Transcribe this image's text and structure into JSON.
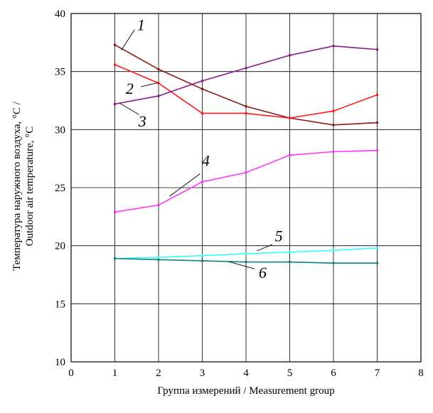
{
  "chart_data": {
    "type": "line",
    "title": "",
    "xlabel": "Группа измерений / Measurement group",
    "ylabel_line1": "Температура наружного воздуха, °С /",
    "ylabel_line2": "Outdoor air temperature, °С",
    "xlim": [
      0,
      8
    ],
    "ylim": [
      10,
      40
    ],
    "xticks": [
      "0",
      "1",
      "2",
      "3",
      "4",
      "5",
      "6",
      "7",
      "8"
    ],
    "yticks": [
      "10",
      "15",
      "20",
      "25",
      "30",
      "35",
      "40"
    ],
    "grid": true,
    "x": [
      1,
      2,
      3,
      4,
      5,
      6,
      7
    ],
    "series": [
      {
        "label": "1",
        "color": "#8b1a1a",
        "values": [
          37.3,
          35.2,
          33.5,
          32.0,
          31.0,
          30.4,
          30.6
        ]
      },
      {
        "label": "2",
        "color": "#ff1a1a",
        "values": [
          35.6,
          34.0,
          31.4,
          31.4,
          31.0,
          31.6,
          33.0
        ]
      },
      {
        "label": "3",
        "color": "#8b1a8b",
        "values": [
          32.2,
          32.9,
          34.2,
          35.3,
          36.4,
          37.2,
          36.9
        ]
      },
      {
        "label": "4",
        "color": "#ff33ff",
        "values": [
          22.9,
          23.5,
          25.5,
          26.3,
          27.8,
          28.1,
          28.2
        ]
      },
      {
        "label": "5",
        "color": "#33ffff",
        "values": [
          18.9,
          19.0,
          19.15,
          19.3,
          19.45,
          19.6,
          19.8
        ]
      },
      {
        "label": "6",
        "color": "#0d8080",
        "values": [
          18.9,
          18.8,
          18.7,
          18.6,
          18.6,
          18.5,
          18.5
        ]
      }
    ]
  }
}
